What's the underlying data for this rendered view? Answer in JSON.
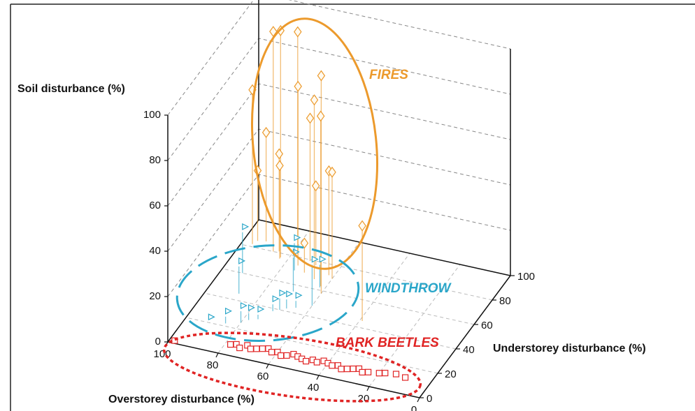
{
  "chart_data": {
    "type": "scatter3d",
    "x_label": "Overstorey disturbance (%)",
    "y_label": "Understorey disturbance (%)",
    "z_label": "Soil disturbance (%)",
    "xlim": [
      0,
      100
    ],
    "ylim": [
      0,
      100
    ],
    "zlim": [
      0,
      100
    ],
    "xticks": [
      0,
      20,
      40,
      60,
      80,
      100
    ],
    "yticks": [
      0,
      20,
      40,
      60,
      80,
      100
    ],
    "zticks": [
      0,
      20,
      40,
      60,
      80,
      100
    ],
    "grid": true,
    "series": [
      {
        "name": "FIRES",
        "color": "#ec9a2c",
        "marker": "diamond",
        "x": [
          87,
          83,
          78,
          96,
          60,
          75,
          66,
          92,
          72,
          62,
          85,
          83,
          95,
          62,
          60,
          69,
          39,
          71
        ],
        "y": [
          80,
          77,
          82,
          82,
          58,
          74,
          67,
          86,
          79,
          63,
          81,
          76,
          85,
          72,
          70,
          77,
          45,
          70
        ],
        "z": [
          97,
          100,
          98,
          68,
          96,
          79,
          79,
          48,
          63,
          75,
          43,
          41,
          31,
          46,
          47,
          35,
          42,
          13
        ]
      },
      {
        "name": "WINDTHROW",
        "color": "#2aa6c9",
        "marker": "flag",
        "x": [
          91,
          85,
          80,
          78,
          75,
          70,
          72,
          68,
          65,
          88,
          92,
          70,
          60,
          75,
          62
        ],
        "y": [
          20,
          22,
          25,
          28,
          30,
          40,
          38,
          42,
          44,
          45,
          60,
          55,
          48,
          70,
          62
        ],
        "z": [
          0,
          3,
          5,
          3,
          2,
          5,
          3,
          4,
          3,
          12,
          18,
          15,
          18,
          12,
          10
        ]
      },
      {
        "name": "BARK BEETLES",
        "color": "#e02424",
        "marker": "square",
        "x": [
          98,
          78,
          76,
          74,
          72,
          70,
          68,
          66,
          64,
          62,
          60,
          58,
          56,
          54,
          52,
          50,
          48,
          46,
          44,
          42,
          40,
          38,
          36,
          34,
          32,
          30,
          28,
          26,
          24,
          20,
          18,
          14,
          10
        ],
        "y": [
          2,
          8,
          9,
          7,
          10,
          8,
          9,
          10,
          11,
          9,
          10,
          8,
          9,
          11,
          10,
          9,
          8,
          10,
          9,
          11,
          10,
          9,
          10,
          8,
          9,
          10,
          11,
          9,
          10,
          11,
          12,
          13,
          12
        ],
        "z": [
          0,
          0,
          0,
          0,
          0,
          0,
          0,
          0,
          0,
          0,
          0,
          0,
          0,
          0,
          0,
          0,
          0,
          0,
          0,
          0,
          0,
          0,
          0,
          0,
          0,
          0,
          0,
          0,
          0,
          0,
          0,
          0,
          0
        ]
      }
    ]
  }
}
